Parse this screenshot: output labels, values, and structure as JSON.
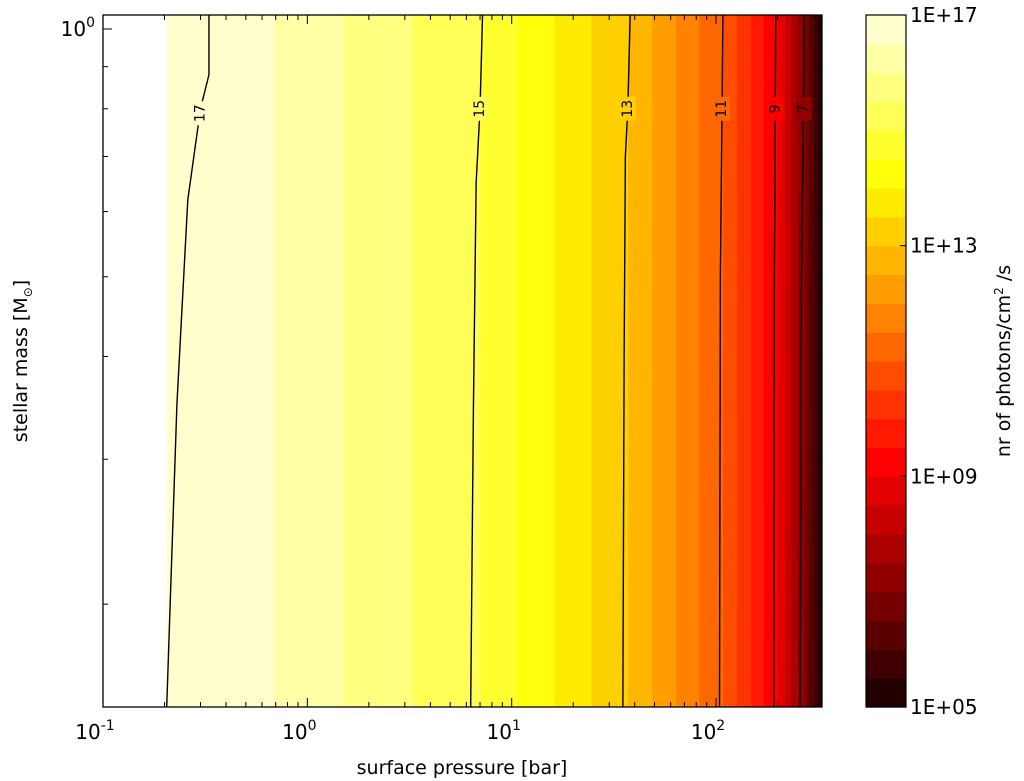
{
  "chart_data": {
    "type": "heatmap",
    "subtype": "filled-contour",
    "xlabel": "surface pressure [bar]",
    "ylabel_main": "stellar mass [M",
    "ylabel_sub": "⊙",
    "ylabel_end": "]",
    "x_scale": "log",
    "y_scale": "log",
    "xlim": [
      0.1,
      330
    ],
    "ylim": [
      0.15,
      1.04
    ],
    "x_ticks": [
      {
        "value": 0.1,
        "base": "10",
        "exp": "-1"
      },
      {
        "value": 1,
        "base": "10",
        "exp": "0"
      },
      {
        "value": 10,
        "base": "10",
        "exp": "1"
      },
      {
        "value": 100,
        "base": "10",
        "exp": "2"
      }
    ],
    "y_ticks": [
      {
        "value": 1,
        "base": "10",
        "exp": "0"
      }
    ],
    "colormap": "hot",
    "colorbar": {
      "label_main": "nr of photons/cm",
      "label_sup": "2",
      "label_end": " /s",
      "scale": "log",
      "range_log10": [
        5,
        17
      ],
      "tick_labels": [
        "1E+17",
        "1E+13",
        "1E+09",
        "1E+05"
      ],
      "tick_values_log10": [
        17,
        13,
        9,
        5
      ],
      "levels": 24
    },
    "field_model": {
      "description_units": "log10 photon flux vs log10 pressure",
      "control_points": [
        {
          "p": 0.1,
          "log_flux": 17.6
        },
        {
          "p": 0.32,
          "log_flux": 17.0
        },
        {
          "p": 7.0,
          "log_flux": 15.0
        },
        {
          "p": 37,
          "log_flux": 13.0
        },
        {
          "p": 108,
          "log_flux": 11.0
        },
        {
          "p": 200,
          "log_flux": 9.0
        },
        {
          "p": 270,
          "log_flux": 7.0
        },
        {
          "p": 330,
          "log_flux": 5.0
        }
      ]
    },
    "contour_lines": [
      {
        "label": "17",
        "points": [
          [
            0.205,
            0.15
          ],
          [
            0.23,
            0.35
          ],
          [
            0.26,
            0.62
          ],
          [
            0.3,
            0.8
          ],
          [
            0.33,
            0.88
          ],
          [
            0.33,
            1.04
          ]
        ],
        "label_at": [
          0.3,
          0.79
        ]
      },
      {
        "label": "15",
        "points": [
          [
            6.3,
            0.15
          ],
          [
            6.5,
            0.35
          ],
          [
            6.7,
            0.65
          ],
          [
            7.0,
            0.8
          ],
          [
            7.2,
            1.04
          ]
        ],
        "label_at": [
          7.0,
          0.8
        ]
      },
      {
        "label": "13",
        "points": [
          [
            35,
            0.15
          ],
          [
            35.5,
            0.4
          ],
          [
            36,
            0.7
          ],
          [
            37,
            0.8
          ],
          [
            38,
            1.04
          ]
        ],
        "label_at": [
          37,
          0.8
        ]
      },
      {
        "label": "11",
        "points": [
          [
            104,
            0.15
          ],
          [
            105,
            0.5
          ],
          [
            107,
            0.8
          ],
          [
            108,
            1.04
          ]
        ],
        "label_at": [
          107,
          0.8
        ]
      },
      {
        "label": "9",
        "points": [
          [
            192,
            0.15
          ],
          [
            193,
            0.5
          ],
          [
            195,
            0.8
          ],
          [
            196,
            1.04
          ]
        ],
        "label_at": [
          195,
          0.8
        ]
      },
      {
        "label": "7",
        "points": [
          [
            258,
            0.15
          ],
          [
            262,
            0.5
          ],
          [
            268,
            0.8
          ],
          [
            270,
            1.04
          ]
        ],
        "label_at": [
          268,
          0.8
        ]
      }
    ]
  }
}
